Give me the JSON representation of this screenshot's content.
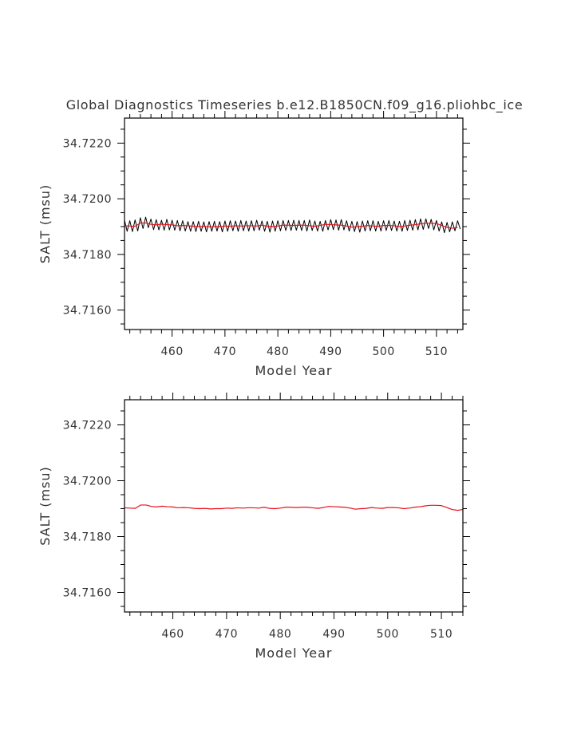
{
  "title": "Global Diagnostics Timeseries b.e12.B1850CN.f09_g16.pliohbc_ice",
  "colors": {
    "raw": "#000000",
    "smooth": "#e8101a",
    "frame": "#000000",
    "text": "#333333"
  },
  "chart_data": [
    {
      "type": "line",
      "xlabel": "Model Year",
      "ylabel": "SALT (msu)",
      "xlim": [
        451,
        515
      ],
      "ylim": [
        34.7153,
        34.7229
      ],
      "xticks": [
        460,
        470,
        480,
        490,
        500,
        510
      ],
      "yticks": [
        "34.7160",
        "34.7180",
        "34.7200",
        "34.7220"
      ],
      "grid": false,
      "series": [
        {
          "style": "black-raw",
          "x": [
            451.0,
            451.5,
            452.0,
            452.5,
            453.0,
            453.5,
            454.0,
            454.5,
            455.0,
            455.5,
            456.0,
            456.5,
            457.0,
            457.5,
            458.0,
            458.5,
            459.0,
            459.5,
            460.0,
            460.5,
            461.0,
            461.5,
            462.0,
            462.5,
            463.0,
            463.5,
            464.0,
            464.5,
            465.0,
            465.5,
            466.0,
            466.5,
            467.0,
            467.5,
            468.0,
            468.5,
            469.0,
            469.5,
            470.0,
            470.5,
            471.0,
            471.5,
            472.0,
            472.5,
            473.0,
            473.5,
            474.0,
            474.5,
            475.0,
            475.5,
            476.0,
            476.5,
            477.0,
            477.5,
            478.0,
            478.5,
            479.0,
            479.5,
            480.0,
            480.5,
            481.0,
            481.5,
            482.0,
            482.5,
            483.0,
            483.5,
            484.0,
            484.5,
            485.0,
            485.5,
            486.0,
            486.5,
            487.0,
            487.5,
            488.0,
            488.5,
            489.0,
            489.5,
            490.0,
            490.5,
            491.0,
            491.5,
            492.0,
            492.5,
            493.0,
            493.5,
            494.0,
            494.5,
            495.0,
            495.5,
            496.0,
            496.5,
            497.0,
            497.5,
            498.0,
            498.5,
            499.0,
            499.5,
            500.0,
            500.5,
            501.0,
            501.5,
            502.0,
            502.5,
            503.0,
            503.5,
            504.0,
            504.5,
            505.0,
            505.5,
            506.0,
            506.5,
            507.0,
            507.5,
            508.0,
            508.5,
            509.0,
            509.5,
            510.0,
            510.5,
            511.0,
            511.5,
            512.0,
            512.5,
            513.0,
            513.5,
            514.0,
            514.5
          ],
          "values": [
            34.71923,
            34.71883,
            34.71921,
            34.71882,
            34.71924,
            34.71884,
            34.71932,
            34.71893,
            34.71934,
            34.71896,
            34.71927,
            34.71889,
            34.71925,
            34.71888,
            34.71923,
            34.71887,
            34.71926,
            34.71888,
            34.71923,
            34.71887,
            34.71922,
            34.71885,
            34.71921,
            34.71884,
            34.71918,
            34.71883,
            34.71918,
            34.71882,
            34.71919,
            34.71883,
            34.71917,
            34.71881,
            34.71918,
            34.71883,
            34.71919,
            34.71884,
            34.71918,
            34.71881,
            34.7192,
            34.71883,
            34.71921,
            34.71885,
            34.7192,
            34.71883,
            34.71922,
            34.71885,
            34.7192,
            34.71884,
            34.71921,
            34.71885,
            34.71923,
            34.71887,
            34.7192,
            34.71883,
            34.71919,
            34.7188,
            34.7192,
            34.71883,
            34.71921,
            34.71885,
            34.71922,
            34.71886,
            34.71922,
            34.71886,
            34.71923,
            34.71887,
            34.71922,
            34.71886,
            34.71922,
            34.71884,
            34.71924,
            34.71886,
            34.7192,
            34.71884,
            34.71919,
            34.71883,
            34.71922,
            34.71888,
            34.71925,
            34.71889,
            34.71924,
            34.71887,
            34.71925,
            34.71888,
            34.71921,
            34.71884,
            34.71919,
            34.71882,
            34.71918,
            34.7188,
            34.7192,
            34.71884,
            34.71921,
            34.71885,
            34.71921,
            34.71884,
            34.71919,
            34.71884,
            34.71921,
            34.71886,
            34.71922,
            34.71886,
            34.7192,
            34.71884,
            34.71919,
            34.71883,
            34.71922,
            34.71886,
            34.71923,
            34.71887,
            34.71925,
            34.71888,
            34.71928,
            34.7189,
            34.71928,
            34.71893,
            34.71926,
            34.71888,
            34.71922,
            34.71884,
            34.71917,
            34.71878,
            34.71915,
            34.71881,
            34.71917,
            34.71885,
            34.71921,
            34.71891
          ]
        },
        {
          "style": "red-smooth",
          "x": [
            451,
            452,
            453,
            454,
            455,
            456,
            457,
            458,
            459,
            460,
            461,
            462,
            463,
            464,
            465,
            466,
            467,
            468,
            469,
            470,
            471,
            472,
            473,
            474,
            475,
            476,
            477,
            478,
            479,
            480,
            481,
            482,
            483,
            484,
            485,
            486,
            487,
            488,
            489,
            490,
            491,
            492,
            493,
            494,
            495,
            496,
            497,
            498,
            499,
            500,
            501,
            502,
            503,
            504,
            505,
            506,
            507,
            508,
            509,
            510,
            511,
            512,
            513,
            514
          ],
          "values": [
            34.71903,
            34.71902,
            34.71901,
            34.71913,
            34.71913,
            34.71908,
            34.71906,
            34.71909,
            34.71907,
            34.71906,
            34.71903,
            34.71904,
            34.71903,
            34.71901,
            34.719,
            34.71901,
            34.71899,
            34.719,
            34.719,
            34.71902,
            34.71901,
            34.71903,
            34.71902,
            34.71903,
            34.71903,
            34.71902,
            34.71905,
            34.71901,
            34.719,
            34.71902,
            34.71905,
            34.71905,
            34.71904,
            34.71905,
            34.71905,
            34.71903,
            34.71901,
            34.71904,
            34.71908,
            34.71907,
            34.71906,
            34.71905,
            34.71902,
            34.71898,
            34.719,
            34.71901,
            34.71904,
            34.71902,
            34.71901,
            34.71904,
            34.71904,
            34.71903,
            34.719,
            34.71902,
            34.71905,
            34.71907,
            34.7191,
            34.71912,
            34.71912,
            34.71911,
            34.71904,
            34.71897,
            34.71894,
            34.71897
          ]
        }
      ]
    },
    {
      "type": "line",
      "xlabel": "Model Year",
      "ylabel": "SALT (msu)",
      "xlim": [
        451,
        514
      ],
      "ylim": [
        34.7153,
        34.7229
      ],
      "xticks": [
        460,
        470,
        480,
        490,
        500,
        510
      ],
      "yticks": [
        "34.7160",
        "34.7180",
        "34.7200",
        "34.7220"
      ],
      "grid": false,
      "series": [
        {
          "style": "red-smooth",
          "x": [
            451,
            452,
            453,
            454,
            455,
            456,
            457,
            458,
            459,
            460,
            461,
            462,
            463,
            464,
            465,
            466,
            467,
            468,
            469,
            470,
            471,
            472,
            473,
            474,
            475,
            476,
            477,
            478,
            479,
            480,
            481,
            482,
            483,
            484,
            485,
            486,
            487,
            488,
            489,
            490,
            491,
            492,
            493,
            494,
            495,
            496,
            497,
            498,
            499,
            500,
            501,
            502,
            503,
            504,
            505,
            506,
            507,
            508,
            509,
            510,
            511,
            512,
            513,
            514
          ],
          "values": [
            34.71903,
            34.71902,
            34.71901,
            34.71913,
            34.71913,
            34.71908,
            34.71906,
            34.71909,
            34.71907,
            34.71906,
            34.71903,
            34.71904,
            34.71903,
            34.71901,
            34.719,
            34.71901,
            34.71899,
            34.719,
            34.719,
            34.71902,
            34.71901,
            34.71903,
            34.71902,
            34.71903,
            34.71903,
            34.71902,
            34.71905,
            34.71901,
            34.719,
            34.71902,
            34.71905,
            34.71905,
            34.71904,
            34.71905,
            34.71905,
            34.71903,
            34.71901,
            34.71904,
            34.71908,
            34.71907,
            34.71906,
            34.71905,
            34.71902,
            34.71898,
            34.719,
            34.71901,
            34.71904,
            34.71902,
            34.71901,
            34.71904,
            34.71904,
            34.71903,
            34.719,
            34.71902,
            34.71905,
            34.71907,
            34.7191,
            34.71912,
            34.71912,
            34.71911,
            34.71904,
            34.71897,
            34.71894,
            34.71897
          ]
        }
      ]
    }
  ]
}
